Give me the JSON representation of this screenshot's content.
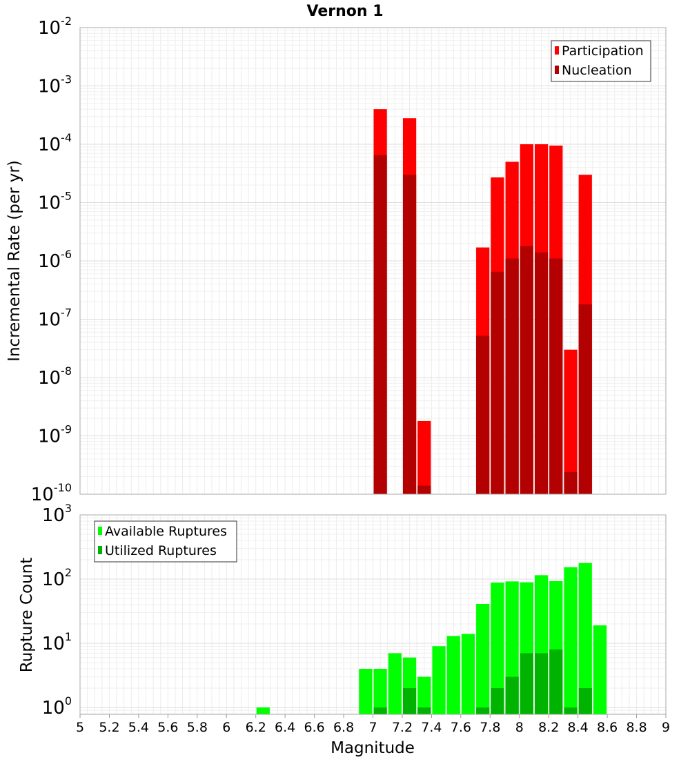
{
  "chart_data": [
    {
      "type": "bar",
      "title": "Vernon 1",
      "ylabel": "Incremental Rate (per yr)",
      "xlabel": "",
      "y_scale": "log",
      "ylim": [
        1e-10,
        0.01
      ],
      "xlim": [
        5,
        9
      ],
      "bar_width": 0.1,
      "grid": true,
      "legend_position": "top-right",
      "y_tick_exponents": [
        "-2",
        "-3",
        "-4",
        "-5",
        "-6",
        "-7",
        "-8",
        "-9",
        "-10"
      ],
      "y_tick_base": "10",
      "series": [
        {
          "name": "Participation",
          "color": "#ff0000",
          "x": [
            7.05,
            7.25,
            7.35,
            7.75,
            7.85,
            7.95,
            8.05,
            8.15,
            8.25,
            8.35,
            8.45
          ],
          "values": [
            0.0004,
            0.00028,
            1.8e-09,
            1.7e-06,
            2.7e-05,
            5e-05,
            0.0001,
            0.0001,
            9.5e-05,
            3e-08,
            3e-05
          ]
        },
        {
          "name": "Nucleation",
          "color": "#b30000",
          "x": [
            7.05,
            7.25,
            7.35,
            7.75,
            7.85,
            7.95,
            8.05,
            8.15,
            8.25,
            8.35,
            8.45
          ],
          "values": [
            6.5e-05,
            3e-05,
            1.4e-10,
            5.2e-08,
            6.5e-07,
            1.1e-06,
            1.8e-06,
            1.4e-06,
            1.1e-06,
            2.4e-10,
            1.8e-07
          ]
        }
      ]
    },
    {
      "type": "bar",
      "title": "",
      "ylabel": "Rupture Count",
      "xlabel": "Magnitude",
      "y_scale": "log",
      "ylim": [
        0.78,
        1000
      ],
      "xlim": [
        5,
        9
      ],
      "bar_width": 0.1,
      "grid": true,
      "legend_position": "top-left",
      "y_tick_exponents": [
        "3",
        "2",
        "1",
        "0"
      ],
      "y_tick_base": "10",
      "x_ticks": [
        "5",
        "5.2",
        "5.4",
        "5.6",
        "5.8",
        "6",
        "6.2",
        "6.4",
        "6.6",
        "6.8",
        "7",
        "7.2",
        "7.4",
        "7.6",
        "7.8",
        "8",
        "8.2",
        "8.4",
        "8.6",
        "8.8",
        "9"
      ],
      "series": [
        {
          "name": "Available Ruptures",
          "color": "#00ff00",
          "x": [
            6.25,
            6.95,
            7.05,
            7.15,
            7.25,
            7.35,
            7.45,
            7.55,
            7.65,
            7.75,
            7.85,
            7.95,
            8.05,
            8.15,
            8.25,
            8.35,
            8.45,
            8.55
          ],
          "values": [
            1,
            4,
            4,
            7,
            6,
            3,
            9,
            13,
            14,
            41,
            88,
            92,
            89,
            115,
            93,
            153,
            178,
            19
          ]
        },
        {
          "name": "Utilized Ruptures",
          "color": "#00b300",
          "x": [
            7.05,
            7.25,
            7.35,
            7.75,
            7.85,
            7.95,
            8.05,
            8.15,
            8.25,
            8.35,
            8.45
          ],
          "values": [
            1,
            2,
            1,
            1,
            2,
            3,
            7,
            7,
            8,
            1,
            2
          ]
        }
      ]
    }
  ]
}
